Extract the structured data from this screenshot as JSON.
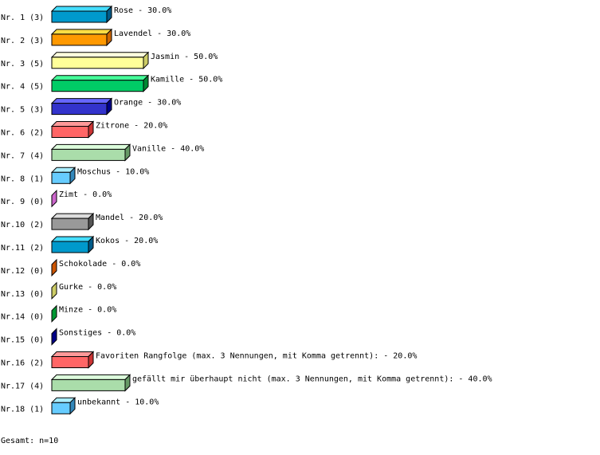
{
  "chart_data": {
    "type": "bar",
    "orientation": "horizontal",
    "style": "3d",
    "xlim": [
      0,
      100
    ],
    "unit": "%",
    "categories": [
      "Nr. 1 (3)",
      "Nr. 2 (3)",
      "Nr. 3 (5)",
      "Nr. 4 (5)",
      "Nr. 5 (3)",
      "Nr. 6 (2)",
      "Nr. 7 (4)",
      "Nr. 8 (1)",
      "Nr. 9 (0)",
      "Nr.10 (2)",
      "Nr.11 (2)",
      "Nr.12 (0)",
      "Nr.13 (0)",
      "Nr.14 (0)",
      "Nr.15 (0)",
      "Nr.16 (2)",
      "Nr.17 (4)",
      "Nr.18 (1)"
    ],
    "bars": [
      {
        "label": "Rose",
        "value": 30.0,
        "value_text": "30.0%",
        "colors": [
          "#0099cc",
          "#44ddff",
          "#005a88"
        ]
      },
      {
        "label": "Lavendel",
        "value": 30.0,
        "value_text": "30.0%",
        "colors": [
          "#ff9900",
          "#ffdd44",
          "#cc6600"
        ]
      },
      {
        "label": "Jasmin",
        "value": 50.0,
        "value_text": "50.0%",
        "colors": [
          "#ffff99",
          "#ffffdd",
          "#cccc66"
        ]
      },
      {
        "label": "Kamille",
        "value": 50.0,
        "value_text": "50.0%",
        "colors": [
          "#00cc66",
          "#44ff99",
          "#008833"
        ]
      },
      {
        "label": "Orange",
        "value": 30.0,
        "value_text": "30.0%",
        "colors": [
          "#3333cc",
          "#6666ff",
          "#000088"
        ]
      },
      {
        "label": "Zitrone",
        "value": 20.0,
        "value_text": "20.0%",
        "colors": [
          "#ff6666",
          "#ff9999",
          "#cc3333"
        ]
      },
      {
        "label": "Vanille",
        "value": 40.0,
        "value_text": "40.0%",
        "colors": [
          "#aaddaa",
          "#ddffdd",
          "#669966"
        ]
      },
      {
        "label": "Moschus",
        "value": 10.0,
        "value_text": "10.0%",
        "colors": [
          "#66ccff",
          "#aaeeff",
          "#3388bb"
        ]
      },
      {
        "label": "Zimt",
        "value": 0.0,
        "value_text": "0.0%",
        "colors": [
          "#cc66cc",
          "#ee99ee",
          "#cc66cc"
        ]
      },
      {
        "label": "Mandel",
        "value": 20.0,
        "value_text": "20.0%",
        "colors": [
          "#999999",
          "#dddddd",
          "#555555"
        ]
      },
      {
        "label": "Kokos",
        "value": 20.0,
        "value_text": "20.0%",
        "colors": [
          "#0099cc",
          "#44ddff",
          "#005a88"
        ]
      },
      {
        "label": "Schokolade",
        "value": 0.0,
        "value_text": "0.0%",
        "colors": [
          "#cc5500",
          "#ee8833",
          "#cc5500"
        ]
      },
      {
        "label": "Gurke",
        "value": 0.0,
        "value_text": "0.0%",
        "colors": [
          "#cccc66",
          "#eeee99",
          "#cccc66"
        ]
      },
      {
        "label": "Minze",
        "value": 0.0,
        "value_text": "0.0%",
        "colors": [
          "#009933",
          "#33cc66",
          "#009933"
        ]
      },
      {
        "label": "Sonstiges",
        "value": 0.0,
        "value_text": "0.0%",
        "colors": [
          "#000088",
          "#3333cc",
          "#000088"
        ]
      },
      {
        "label": "Favoriten Rangfolge (max. 3 Nennungen, mit Komma getrennt):",
        "value": 20.0,
        "value_text": "20.0%",
        "colors": [
          "#ff6666",
          "#ff9999",
          "#cc3333"
        ]
      },
      {
        "label": "gefällt mir überhaupt nicht (max. 3 Nennungen, mit Komma getrennt):",
        "value": 40.0,
        "value_text": "40.0%",
        "colors": [
          "#aaddaa",
          "#ddffdd",
          "#669966"
        ]
      },
      {
        "label": "unbekannt",
        "value": 10.0,
        "value_text": "10.0%",
        "colors": [
          "#66ccff",
          "#aaeeff",
          "#3388bb"
        ]
      }
    ],
    "total": "Gesamt: n=10"
  }
}
